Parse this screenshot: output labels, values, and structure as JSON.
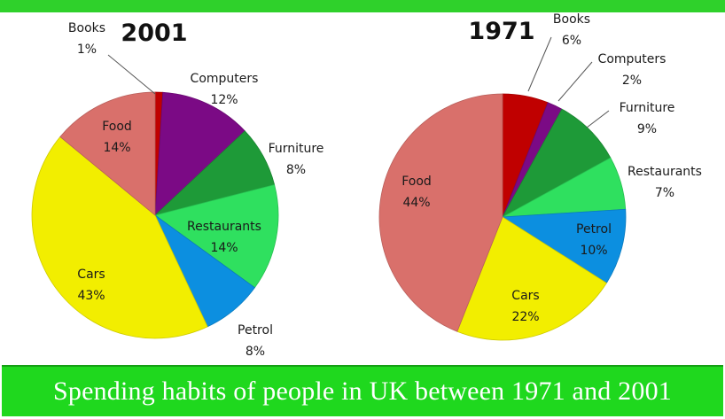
{
  "chart_data": [
    {
      "type": "pie",
      "title": "2001",
      "slices": [
        {
          "label": "Books",
          "value": 1,
          "display": "1%",
          "color": "#c00000"
        },
        {
          "label": "Computers",
          "value": 12,
          "display": "12%",
          "color": "#7b0a85"
        },
        {
          "label": "Furniture",
          "value": 8,
          "display": "8%",
          "color": "#1e9a38"
        },
        {
          "label": "Restaurants",
          "value": 14,
          "display": "14%",
          "color": "#2fe05f"
        },
        {
          "label": "Petrol",
          "value": 8,
          "display": "8%",
          "color": "#0c8fe0"
        },
        {
          "label": "Cars",
          "value": 43,
          "display": "43%",
          "color": "#f2ee00"
        },
        {
          "label": "Food",
          "value": 14,
          "display": "14%",
          "color": "#d9706b"
        }
      ]
    },
    {
      "type": "pie",
      "title": "1971",
      "slices": [
        {
          "label": "Books",
          "value": 6,
          "display": "6%",
          "color": "#c00000"
        },
        {
          "label": "Computers",
          "value": 2,
          "display": "2%",
          "color": "#7b0a85"
        },
        {
          "label": "Furniture",
          "value": 9,
          "display": "9%",
          "color": "#1e9a38"
        },
        {
          "label": "Restaurants",
          "value": 7,
          "display": "7%",
          "color": "#2fe05f"
        },
        {
          "label": "Petrol",
          "value": 10,
          "display": "10%",
          "color": "#0c8fe0"
        },
        {
          "label": "Cars",
          "value": 22,
          "display": "22%",
          "color": "#f2ee00"
        },
        {
          "label": "Food",
          "value": 44,
          "display": "44%",
          "color": "#d9706b"
        }
      ]
    }
  ],
  "banner": {
    "text": "Spending habits of people in UK between 1971 and 2001"
  }
}
